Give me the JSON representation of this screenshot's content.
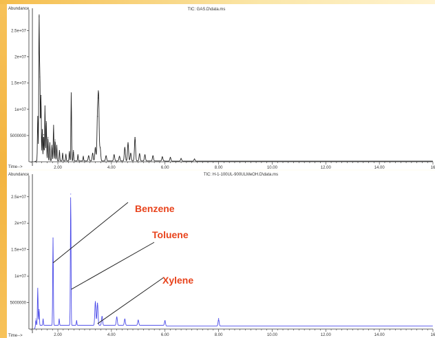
{
  "chart_data": [
    {
      "type": "line",
      "title": "TIC: GAS.D\\data.ms",
      "ylabel": "Abundance",
      "xlabel": "Time-->",
      "line_color": "#222222",
      "x_ticks": [
        "2.00",
        "4.00",
        "6.00",
        "8.00",
        "10.00",
        "12.00",
        "14.00",
        "16"
      ],
      "x_tick_values": [
        2,
        4,
        6,
        8,
        10,
        12,
        14,
        16
      ],
      "y_ticks": [
        "5000000",
        "1e+07",
        "1.5e+07",
        "2e+07",
        "2.5e+07"
      ],
      "y_tick_values": [
        5000000,
        10000000,
        15000000,
        20000000,
        25000000
      ],
      "xlim": [
        0.92,
        16.0
      ],
      "ylim": [
        0,
        29000000
      ],
      "baseline": 150000,
      "cursor_time": 1.05,
      "peaks": [
        {
          "x": 1.25,
          "y": 8500000
        },
        {
          "x": 1.3,
          "y": 27500000
        },
        {
          "x": 1.33,
          "y": 16000000
        },
        {
          "x": 1.37,
          "y": 12500000
        },
        {
          "x": 1.42,
          "y": 6000000
        },
        {
          "x": 1.47,
          "y": 5000000
        },
        {
          "x": 1.52,
          "y": 10500000
        },
        {
          "x": 1.57,
          "y": 7500000
        },
        {
          "x": 1.63,
          "y": 4500000
        },
        {
          "x": 1.7,
          "y": 3500000
        },
        {
          "x": 1.78,
          "y": 3000000
        },
        {
          "x": 1.84,
          "y": 6800000
        },
        {
          "x": 1.9,
          "y": 4000000
        },
        {
          "x": 1.96,
          "y": 3000000
        },
        {
          "x": 2.06,
          "y": 2000000
        },
        {
          "x": 2.18,
          "y": 1500000
        },
        {
          "x": 2.3,
          "y": 1300000
        },
        {
          "x": 2.43,
          "y": 1800000
        },
        {
          "x": 2.5,
          "y": 13000000
        },
        {
          "x": 2.58,
          "y": 2000000
        },
        {
          "x": 2.75,
          "y": 1200000
        },
        {
          "x": 2.95,
          "y": 900000
        },
        {
          "x": 3.15,
          "y": 1000000
        },
        {
          "x": 3.3,
          "y": 1500000
        },
        {
          "x": 3.4,
          "y": 2600000
        },
        {
          "x": 3.48,
          "y": 8500000
        },
        {
          "x": 3.52,
          "y": 12000000
        },
        {
          "x": 3.58,
          "y": 2500000
        },
        {
          "x": 3.8,
          "y": 1000000
        },
        {
          "x": 4.1,
          "y": 1200000
        },
        {
          "x": 4.3,
          "y": 900000
        },
        {
          "x": 4.5,
          "y": 2600000
        },
        {
          "x": 4.62,
          "y": 3500000
        },
        {
          "x": 4.72,
          "y": 1500000
        },
        {
          "x": 4.88,
          "y": 4500000
        },
        {
          "x": 5.05,
          "y": 1400000
        },
        {
          "x": 5.25,
          "y": 1200000
        },
        {
          "x": 5.55,
          "y": 1000000
        },
        {
          "x": 5.9,
          "y": 800000
        },
        {
          "x": 6.2,
          "y": 700000
        },
        {
          "x": 6.6,
          "y": 500000
        },
        {
          "x": 7.1,
          "y": 400000
        }
      ]
    },
    {
      "type": "line",
      "title": "TIC: H-1-100UL-900ULMeOH.D\\data.ms",
      "ylabel": "Abundance",
      "xlabel": "Time-->",
      "line_color": "#4a4ae8",
      "x_ticks": [
        "2.00",
        "4.00",
        "6.00",
        "8.00",
        "10.00",
        "12.00",
        "14.00",
        "16"
      ],
      "x_tick_values": [
        2,
        4,
        6,
        8,
        10,
        12,
        14,
        16
      ],
      "y_ticks": [
        "5000000",
        "1e+07",
        "1.5e+07",
        "2e+07",
        "2.5e+07"
      ],
      "y_tick_values": [
        5000000,
        10000000,
        15000000,
        20000000,
        25000000
      ],
      "xlim": [
        0.92,
        16.0
      ],
      "ylim": [
        0,
        29000000
      ],
      "baseline": 700000,
      "cursor_time": 1.05,
      "peaks": [
        {
          "x": 1.18,
          "y": 1200000
        },
        {
          "x": 1.25,
          "y": 7000000
        },
        {
          "x": 1.3,
          "y": 3000000
        },
        {
          "x": 1.45,
          "y": 1200000
        },
        {
          "x": 1.82,
          "y": 16500000
        },
        {
          "x": 2.05,
          "y": 1200000
        },
        {
          "x": 2.48,
          "y": 24800000
        },
        {
          "x": 2.7,
          "y": 900000
        },
        {
          "x": 3.4,
          "y": 4500000
        },
        {
          "x": 3.48,
          "y": 4200000
        },
        {
          "x": 3.65,
          "y": 1700000
        },
        {
          "x": 4.2,
          "y": 1600000
        },
        {
          "x": 4.5,
          "y": 1200000
        },
        {
          "x": 5.0,
          "y": 1000000
        },
        {
          "x": 6.0,
          "y": 900000
        },
        {
          "x": 8.0,
          "y": 1300000
        }
      ],
      "annotations": [
        {
          "text": "Benzene",
          "target_x": 1.82,
          "target_y": 12500000
        },
        {
          "text": "Toluene",
          "target_x": 2.5,
          "target_y": 7500000
        },
        {
          "text": "Xylene",
          "target_x": 3.48,
          "target_y": 1000000
        }
      ]
    }
  ]
}
